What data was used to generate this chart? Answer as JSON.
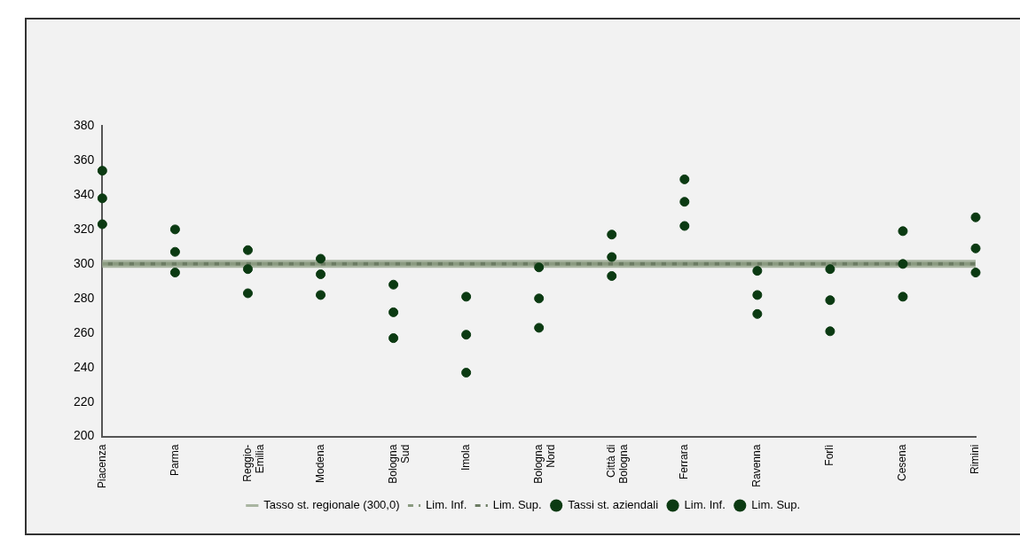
{
  "chart_data": {
    "type": "scatter",
    "categories": [
      "Piacenza",
      "Parma",
      "Reggio-Emilia",
      "Modena",
      "Bologna Sud",
      "Imola",
      "Bologna Nord",
      "Città di Bologna",
      "Ferrara",
      "Ravenna",
      "Forlì",
      "Cesena",
      "Rimini"
    ],
    "series": [
      {
        "name": "Tasso st. regionale (300,0)",
        "type": "line",
        "color": "#a9b5a1",
        "line_style": "solid",
        "marker": "none",
        "values": [
          300,
          300,
          300,
          300,
          300,
          300,
          300,
          300,
          300,
          300,
          300,
          300,
          300
        ]
      },
      {
        "name": "Lim. Inf.",
        "type": "line",
        "color": "#8a9a80",
        "line_style": "dashed",
        "marker": "none",
        "values": [
          300,
          300,
          300,
          300,
          300,
          300,
          300,
          300,
          300,
          300,
          300,
          300,
          300
        ]
      },
      {
        "name": "Lim. Sup.",
        "type": "line",
        "color": "#6c7c63",
        "line_style": "dashed",
        "marker": "none",
        "values": [
          300,
          300,
          300,
          300,
          300,
          300,
          300,
          300,
          300,
          300,
          300,
          300,
          300
        ]
      },
      {
        "name": "Tassi st. aziendali",
        "color": "#0b3a12",
        "marker": "circle",
        "values": [
          338,
          307,
          297,
          294,
          272,
          259,
          280,
          304,
          336,
          282,
          279,
          300,
          309
        ]
      },
      {
        "name": "Lim. Inf.",
        "color": "#0b3a12",
        "marker": "circle",
        "values": [
          323,
          295,
          283,
          282,
          257,
          237,
          263,
          293,
          322,
          271,
          261,
          281,
          295
        ]
      },
      {
        "name": "Lim. Sup.",
        "color": "#0b3a12",
        "marker": "circle",
        "values": [
          354,
          320,
          308,
          303,
          288,
          281,
          298,
          317,
          349,
          296,
          297,
          319,
          327
        ]
      }
    ],
    "ylim": [
      200,
      380
    ],
    "yticks": [
      200,
      220,
      240,
      260,
      280,
      300,
      320,
      340,
      360,
      380
    ],
    "grid": false,
    "legend": "bottom"
  }
}
